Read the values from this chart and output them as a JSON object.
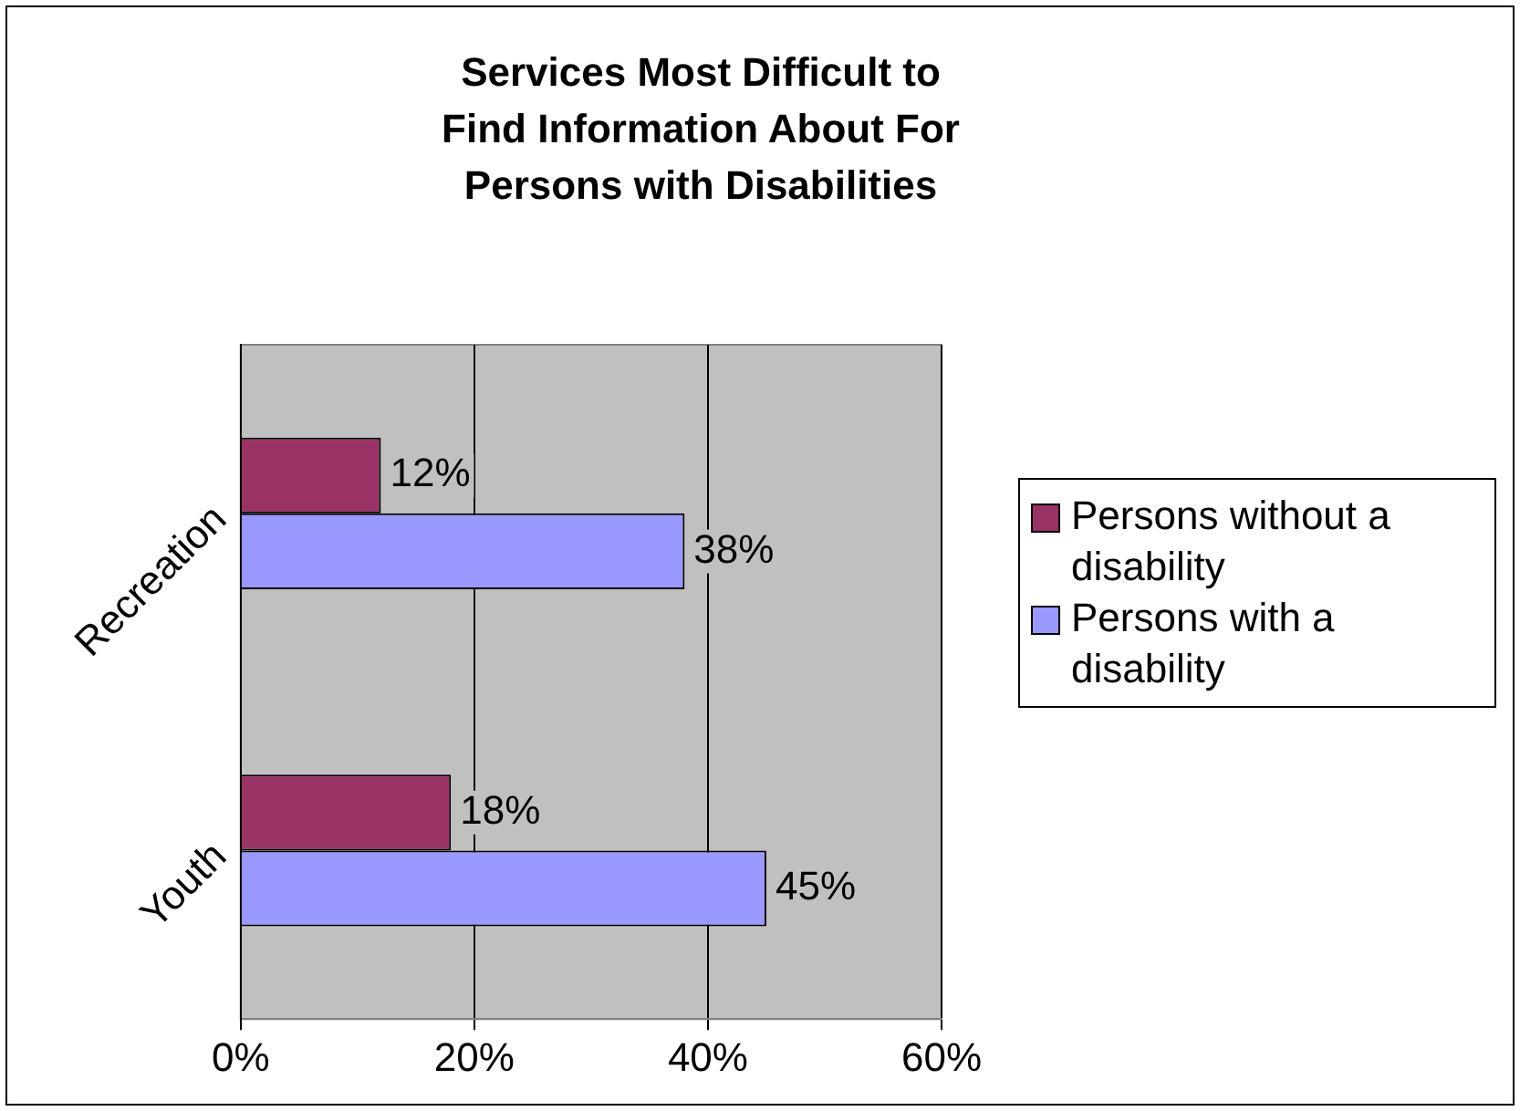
{
  "chart_data": {
    "type": "bar",
    "orientation": "horizontal",
    "title": "Services Most Difficult  to Find Information About For Persons with Disabilities",
    "categories": [
      "Recreation",
      "Youth"
    ],
    "series": [
      {
        "name": "Persons without a disability",
        "color": "#993366",
        "values": [
          12,
          18
        ],
        "value_labels": [
          "12%",
          "18%"
        ]
      },
      {
        "name": "Persons with a disability",
        "color": "#9999ff",
        "values": [
          38,
          45
        ],
        "value_labels": [
          "38%",
          "45%"
        ]
      }
    ],
    "xlim": [
      0,
      60
    ],
    "xticks": [
      {
        "value": 0,
        "label": "0%"
      },
      {
        "value": 20,
        "label": "20%"
      },
      {
        "value": 40,
        "label": "40%"
      },
      {
        "value": 60,
        "label": "60%"
      }
    ],
    "grid": "x",
    "legend": "right"
  }
}
